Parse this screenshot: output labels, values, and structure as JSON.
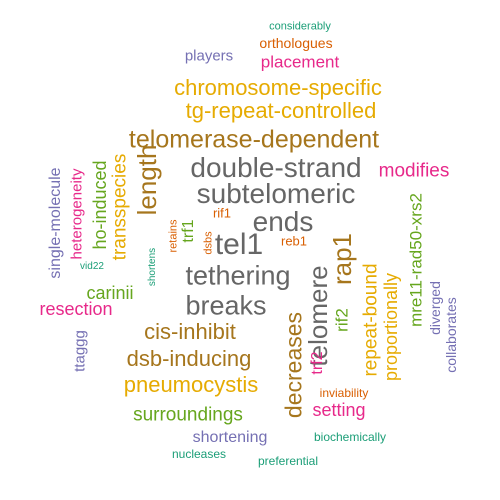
{
  "words": [
    {
      "text": "considerably",
      "color": "#1b9e77"
    },
    {
      "text": "orthologues",
      "color": "#d95f02"
    },
    {
      "text": "players",
      "color": "#7570b3"
    },
    {
      "text": "placement",
      "color": "#e7298a"
    },
    {
      "text": "chromosome-specific",
      "color": "#e6ab02"
    },
    {
      "text": "tg-repeat-controlled",
      "color": "#e6ab02"
    },
    {
      "text": "telomerase-dependent",
      "color": "#a6761d"
    },
    {
      "text": "double-strand",
      "color": "#666666"
    },
    {
      "text": "modifies",
      "color": "#e7298a"
    },
    {
      "text": "subtelomeric",
      "color": "#666666"
    },
    {
      "text": "length",
      "color": "#a6761d"
    },
    {
      "text": "ends",
      "color": "#666666"
    },
    {
      "text": "tel1",
      "color": "#666666"
    },
    {
      "text": "tethering",
      "color": "#666666"
    },
    {
      "text": "breaks",
      "color": "#666666"
    },
    {
      "text": "cis-inhibit",
      "color": "#a6761d"
    },
    {
      "text": "dsb-inducing",
      "color": "#a6761d"
    },
    {
      "text": "pneumocystis",
      "color": "#e6ab02"
    },
    {
      "text": "surroundings",
      "color": "#66a61e"
    },
    {
      "text": "shortening",
      "color": "#7570b3"
    },
    {
      "text": "biochemically",
      "color": "#1b9e77"
    },
    {
      "text": "nucleases",
      "color": "#1b9e77"
    },
    {
      "text": "preferential",
      "color": "#1b9e77"
    },
    {
      "text": "setting",
      "color": "#e7298a"
    },
    {
      "text": "inviability",
      "color": "#d95f02"
    },
    {
      "text": "resection",
      "color": "#e7298a"
    },
    {
      "text": "carinii",
      "color": "#66a61e"
    },
    {
      "text": "vid22",
      "color": "#1b9e77"
    },
    {
      "text": "ttaggg",
      "color": "#7570b3"
    },
    {
      "text": "single-molecule",
      "color": "#7570b3"
    },
    {
      "text": "heterogeneity",
      "color": "#e7298a"
    },
    {
      "text": "ho-induced",
      "color": "#66a61e"
    },
    {
      "text": "transspecies",
      "color": "#e6ab02"
    },
    {
      "text": "shortens",
      "color": "#1b9e77"
    },
    {
      "text": "retains",
      "color": "#d95f02"
    },
    {
      "text": "trf1",
      "color": "#66a61e"
    },
    {
      "text": "dsbs",
      "color": "#d95f02"
    },
    {
      "text": "rif1",
      "color": "#d95f02"
    },
    {
      "text": "reb1",
      "color": "#d95f02"
    },
    {
      "text": "decreases",
      "color": "#a6761d"
    },
    {
      "text": "telomere",
      "color": "#666666"
    },
    {
      "text": "rap1",
      "color": "#a6761d"
    },
    {
      "text": "trf2",
      "color": "#e7298a"
    },
    {
      "text": "rif2",
      "color": "#66a61e"
    },
    {
      "text": "repeat-bound",
      "color": "#e6ab02"
    },
    {
      "text": "proportionally",
      "color": "#e6ab02"
    },
    {
      "text": "mre11-rad50-xrs2",
      "color": "#66a61e"
    },
    {
      "text": "diverged",
      "color": "#7570b3"
    },
    {
      "text": "collaborates",
      "color": "#7570b3"
    }
  ]
}
